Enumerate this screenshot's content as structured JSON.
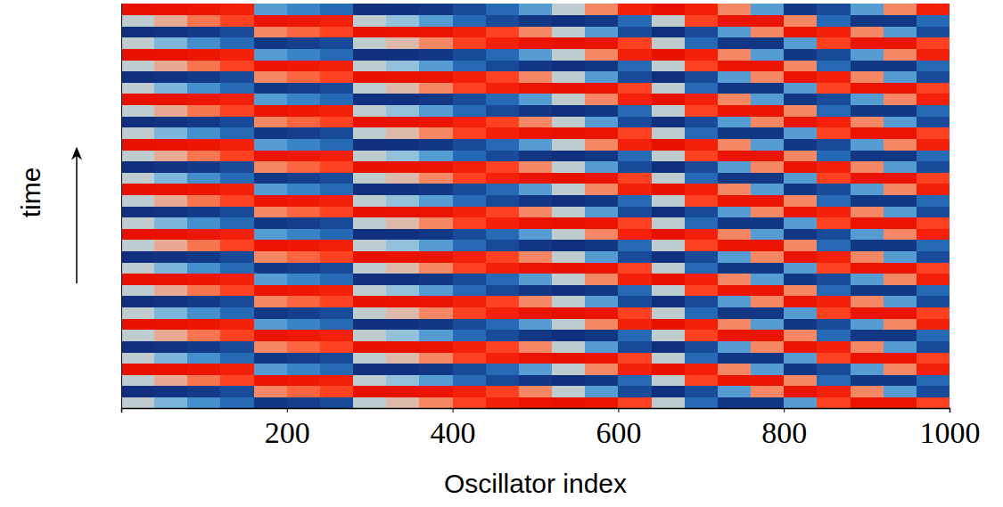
{
  "chart_data": {
    "type": "heatmap",
    "x_label": "Oscillator index",
    "y_label": "time",
    "xlim": [
      0,
      1000
    ],
    "xticks": [
      200,
      400,
      600,
      800,
      1000
    ],
    "ylim": [
      0,
      36
    ],
    "tick_labels": "x",
    "color_range": [
      -1,
      1
    ],
    "x": [
      20,
      60,
      100,
      140,
      180,
      220,
      260,
      300,
      340,
      380,
      420,
      460,
      500,
      540,
      580,
      620,
      660,
      700,
      740,
      780,
      820,
      860,
      900,
      940,
      980
    ],
    "cells": [
      [
        0,
        -0.19,
        -0.37,
        -0.59,
        -0.95,
        -0.9,
        -0.81,
        0,
        0.13,
        0.31,
        0.59,
        0.81,
        0.95,
        1,
        0.95,
        0.59,
        0,
        -0.59,
        -0.95,
        -0.95,
        -0.31,
        0.59,
        0.95,
        0.95,
        0.59
      ],
      [
        -1,
        -0.98,
        -0.93,
        -0.81,
        0.31,
        0.43,
        0.59,
        1,
        0.99,
        0.95,
        0.81,
        0.59,
        0.31,
        0,
        -0.31,
        -0.81,
        -1,
        -0.81,
        -0.31,
        0.31,
        0.95,
        0.81,
        0.31,
        -0.31,
        -0.81
      ],
      [
        0,
        0.19,
        0.37,
        0.59,
        0.95,
        0.9,
        0.81,
        0,
        -0.13,
        -0.31,
        -0.59,
        -0.81,
        -0.95,
        -1,
        -0.95,
        -0.59,
        0,
        0.59,
        0.95,
        0.95,
        0.31,
        -0.59,
        -0.95,
        -0.95,
        -0.59
      ],
      [
        1,
        0.98,
        0.93,
        0.81,
        -0.31,
        -0.43,
        -0.59,
        -1,
        -0.99,
        -0.95,
        -0.81,
        -0.59,
        -0.31,
        0,
        0.31,
        0.81,
        1,
        0.81,
        0.31,
        -0.31,
        -0.95,
        -0.81,
        -0.31,
        0.31,
        0.81
      ],
      [
        0,
        -0.19,
        -0.37,
        -0.59,
        -0.95,
        -0.9,
        -0.81,
        0,
        0.13,
        0.31,
        0.59,
        0.81,
        0.95,
        1,
        0.95,
        0.59,
        0,
        -0.59,
        -0.95,
        -0.95,
        -0.31,
        0.59,
        0.95,
        0.95,
        0.59
      ],
      [
        -1,
        -0.98,
        -0.93,
        -0.81,
        0.31,
        0.43,
        0.59,
        1,
        0.99,
        0.95,
        0.81,
        0.59,
        0.31,
        0,
        -0.31,
        -0.81,
        -1,
        -0.81,
        -0.31,
        0.31,
        0.95,
        0.81,
        0.31,
        -0.31,
        -0.81
      ],
      [
        0,
        0.19,
        0.37,
        0.59,
        0.95,
        0.9,
        0.81,
        0,
        -0.13,
        -0.31,
        -0.59,
        -0.81,
        -0.95,
        -1,
        -0.95,
        -0.59,
        0,
        0.59,
        0.95,
        0.95,
        0.31,
        -0.59,
        -0.95,
        -0.95,
        -0.59
      ],
      [
        1,
        0.98,
        0.93,
        0.81,
        -0.31,
        -0.43,
        -0.59,
        -1,
        -0.99,
        -0.95,
        -0.81,
        -0.59,
        -0.31,
        0,
        0.31,
        0.81,
        1,
        0.81,
        0.31,
        -0.31,
        -0.95,
        -0.81,
        -0.31,
        0.31,
        0.81
      ],
      [
        0,
        -0.19,
        -0.37,
        -0.59,
        -0.95,
        -0.9,
        -0.81,
        0,
        0.13,
        0.31,
        0.59,
        0.81,
        0.95,
        1,
        0.95,
        0.59,
        0,
        -0.59,
        -0.95,
        -0.95,
        -0.31,
        0.59,
        0.95,
        0.95,
        0.59
      ],
      [
        -1,
        -0.98,
        -0.93,
        -0.81,
        0.31,
        0.43,
        0.59,
        1,
        0.99,
        0.95,
        0.81,
        0.59,
        0.31,
        0,
        -0.31,
        -0.81,
        -1,
        -0.81,
        -0.31,
        0.31,
        0.95,
        0.81,
        0.31,
        -0.31,
        -0.81
      ],
      [
        0,
        0.19,
        0.37,
        0.59,
        0.95,
        0.9,
        0.81,
        0,
        -0.13,
        -0.31,
        -0.59,
        -0.81,
        -0.95,
        -1,
        -0.95,
        -0.59,
        0,
        0.59,
        0.95,
        0.95,
        0.31,
        -0.59,
        -0.95,
        -0.95,
        -0.59
      ],
      [
        1,
        0.98,
        0.93,
        0.81,
        -0.31,
        -0.43,
        -0.59,
        -1,
        -0.99,
        -0.95,
        -0.81,
        -0.59,
        -0.31,
        0,
        0.31,
        0.81,
        1,
        0.81,
        0.31,
        -0.31,
        -0.95,
        -0.81,
        -0.31,
        0.31,
        0.81
      ],
      [
        0,
        -0.19,
        -0.37,
        -0.59,
        -0.95,
        -0.9,
        -0.81,
        0,
        0.13,
        0.31,
        0.59,
        0.81,
        0.95,
        1,
        0.95,
        0.59,
        0,
        -0.59,
        -0.95,
        -0.95,
        -0.31,
        0.59,
        0.95,
        0.95,
        0.59
      ],
      [
        -1,
        -0.98,
        -0.93,
        -0.81,
        0.31,
        0.43,
        0.59,
        1,
        0.99,
        0.95,
        0.81,
        0.59,
        0.31,
        0,
        -0.31,
        -0.81,
        -1,
        -0.81,
        -0.31,
        0.31,
        0.95,
        0.81,
        0.31,
        -0.31,
        -0.81
      ],
      [
        0,
        0.19,
        0.37,
        0.59,
        0.95,
        0.9,
        0.81,
        0,
        -0.13,
        -0.31,
        -0.59,
        -0.81,
        -0.95,
        -1,
        -0.95,
        -0.59,
        0,
        0.59,
        0.95,
        0.95,
        0.31,
        -0.59,
        -0.95,
        -0.95,
        -0.59
      ],
      [
        1,
        0.98,
        0.93,
        0.81,
        -0.31,
        -0.43,
        -0.59,
        -1,
        -0.99,
        -0.95,
        -0.81,
        -0.59,
        -0.31,
        0,
        0.31,
        0.81,
        1,
        0.81,
        0.31,
        -0.31,
        -0.95,
        -0.81,
        -0.31,
        0.31,
        0.81
      ],
      [
        0,
        -0.19,
        -0.37,
        -0.59,
        -0.95,
        -0.9,
        -0.81,
        0,
        0.13,
        0.31,
        0.59,
        0.81,
        0.95,
        1,
        0.95,
        0.59,
        0,
        -0.59,
        -0.95,
        -0.95,
        -0.31,
        0.59,
        0.95,
        0.95,
        0.59
      ],
      [
        -1,
        -0.98,
        -0.93,
        -0.81,
        0.31,
        0.43,
        0.59,
        1,
        0.99,
        0.95,
        0.81,
        0.59,
        0.31,
        0,
        -0.31,
        -0.81,
        -1,
        -0.81,
        -0.31,
        0.31,
        0.95,
        0.81,
        0.31,
        -0.31,
        -0.81
      ],
      [
        0,
        0.19,
        0.37,
        0.59,
        0.95,
        0.9,
        0.81,
        0,
        -0.13,
        -0.31,
        -0.59,
        -0.81,
        -0.95,
        -1,
        -0.95,
        -0.59,
        0,
        0.59,
        0.95,
        0.95,
        0.31,
        -0.59,
        -0.95,
        -0.95,
        -0.59
      ],
      [
        1,
        0.98,
        0.93,
        0.81,
        -0.31,
        -0.43,
        -0.59,
        -1,
        -0.99,
        -0.95,
        -0.81,
        -0.59,
        -0.31,
        0,
        0.31,
        0.81,
        1,
        0.81,
        0.31,
        -0.31,
        -0.95,
        -0.81,
        -0.31,
        0.31,
        0.81
      ],
      [
        0,
        -0.19,
        -0.37,
        -0.59,
        -0.95,
        -0.9,
        -0.81,
        0,
        0.13,
        0.31,
        0.59,
        0.81,
        0.95,
        1,
        0.95,
        0.59,
        0,
        -0.59,
        -0.95,
        -0.95,
        -0.31,
        0.59,
        0.95,
        0.95,
        0.59
      ],
      [
        -1,
        -0.98,
        -0.93,
        -0.81,
        0.31,
        0.43,
        0.59,
        1,
        0.99,
        0.95,
        0.81,
        0.59,
        0.31,
        0,
        -0.31,
        -0.81,
        -1,
        -0.81,
        -0.31,
        0.31,
        0.95,
        0.81,
        0.31,
        -0.31,
        -0.81
      ],
      [
        0,
        0.19,
        0.37,
        0.59,
        0.95,
        0.9,
        0.81,
        0,
        -0.13,
        -0.31,
        -0.59,
        -0.81,
        -0.95,
        -1,
        -0.95,
        -0.59,
        0,
        0.59,
        0.95,
        0.95,
        0.31,
        -0.59,
        -0.95,
        -0.95,
        -0.59
      ],
      [
        1,
        0.98,
        0.93,
        0.81,
        -0.31,
        -0.43,
        -0.59,
        -1,
        -0.99,
        -0.95,
        -0.81,
        -0.59,
        -0.31,
        0,
        0.31,
        0.81,
        1,
        0.81,
        0.31,
        -0.31,
        -0.95,
        -0.81,
        -0.31,
        0.31,
        0.81
      ],
      [
        0,
        -0.19,
        -0.37,
        -0.59,
        -0.95,
        -0.9,
        -0.81,
        0,
        0.13,
        0.31,
        0.59,
        0.81,
        0.95,
        1,
        0.95,
        0.59,
        0,
        -0.59,
        -0.95,
        -0.95,
        -0.31,
        0.59,
        0.95,
        0.95,
        0.59
      ],
      [
        -1,
        -0.98,
        -0.93,
        -0.81,
        0.31,
        0.43,
        0.59,
        1,
        0.99,
        0.95,
        0.81,
        0.59,
        0.31,
        0,
        -0.31,
        -0.81,
        -1,
        -0.81,
        -0.31,
        0.31,
        0.95,
        0.81,
        0.31,
        -0.31,
        -0.81
      ],
      [
        0,
        0.19,
        0.37,
        0.59,
        0.95,
        0.9,
        0.81,
        0,
        -0.13,
        -0.31,
        -0.59,
        -0.81,
        -0.95,
        -1,
        -0.95,
        -0.59,
        0,
        0.59,
        0.95,
        0.95,
        0.31,
        -0.59,
        -0.95,
        -0.95,
        -0.59
      ],
      [
        1,
        0.98,
        0.93,
        0.81,
        -0.31,
        -0.43,
        -0.59,
        -1,
        -0.99,
        -0.95,
        -0.81,
        -0.59,
        -0.31,
        0,
        0.31,
        0.81,
        1,
        0.81,
        0.31,
        -0.31,
        -0.95,
        -0.81,
        -0.31,
        0.31,
        0.81
      ],
      [
        0,
        -0.19,
        -0.37,
        -0.59,
        -0.95,
        -0.9,
        -0.81,
        0,
        0.13,
        0.31,
        0.59,
        0.81,
        0.95,
        1,
        0.95,
        0.59,
        0,
        -0.59,
        -0.95,
        -0.95,
        -0.31,
        0.59,
        0.95,
        0.95,
        0.59
      ],
      [
        -1,
        -0.98,
        -0.93,
        -0.81,
        0.31,
        0.43,
        0.59,
        1,
        0.99,
        0.95,
        0.81,
        0.59,
        0.31,
        0,
        -0.31,
        -0.81,
        -1,
        -0.81,
        -0.31,
        0.31,
        0.95,
        0.81,
        0.31,
        -0.31,
        -0.81
      ],
      [
        0,
        0.19,
        0.37,
        0.59,
        0.95,
        0.9,
        0.81,
        0,
        -0.13,
        -0.31,
        -0.59,
        -0.81,
        -0.95,
        -1,
        -0.95,
        -0.59,
        0,
        0.59,
        0.95,
        0.95,
        0.31,
        -0.59,
        -0.95,
        -0.95,
        -0.59
      ],
      [
        1,
        0.98,
        0.93,
        0.81,
        -0.31,
        -0.43,
        -0.59,
        -1,
        -0.99,
        -0.95,
        -0.81,
        -0.59,
        -0.31,
        0,
        0.31,
        0.81,
        1,
        0.81,
        0.31,
        -0.31,
        -0.95,
        -0.81,
        -0.31,
        0.31,
        0.81
      ],
      [
        0,
        -0.19,
        -0.37,
        -0.59,
        -0.95,
        -0.9,
        -0.81,
        0,
        0.13,
        0.31,
        0.59,
        0.81,
        0.95,
        1,
        0.95,
        0.59,
        0,
        -0.59,
        -0.95,
        -0.95,
        -0.31,
        0.59,
        0.95,
        0.95,
        0.59
      ],
      [
        -1,
        -0.98,
        -0.93,
        -0.81,
        0.31,
        0.43,
        0.59,
        1,
        0.99,
        0.95,
        0.81,
        0.59,
        0.31,
        0,
        -0.31,
        -0.81,
        -1,
        -0.81,
        -0.31,
        0.31,
        0.95,
        0.81,
        0.31,
        -0.31,
        -0.81
      ],
      [
        0,
        0.19,
        0.37,
        0.59,
        0.95,
        0.9,
        0.81,
        0,
        -0.13,
        -0.31,
        -0.59,
        -0.81,
        -0.95,
        -1,
        -0.95,
        -0.59,
        0,
        0.59,
        0.95,
        0.95,
        0.31,
        -0.59,
        -0.95,
        -0.95,
        -0.59
      ],
      [
        1,
        0.98,
        0.93,
        0.81,
        -0.31,
        -0.43,
        -0.59,
        -1,
        -0.99,
        -0.95,
        -0.81,
        -0.59,
        -0.31,
        0,
        0.31,
        0.81,
        1,
        0.81,
        0.31,
        -0.31,
        -0.95,
        -0.81,
        -0.31,
        0.31,
        0.81
      ]
    ]
  }
}
